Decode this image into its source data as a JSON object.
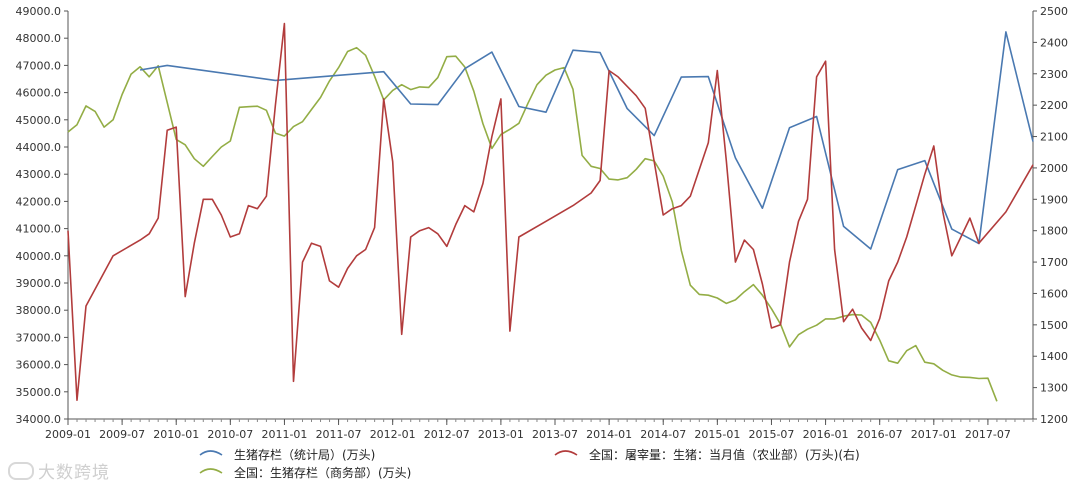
{
  "watermark": "大数跨境",
  "chart_data": {
    "type": "line",
    "x_ticks": [
      "2009-01",
      "2009-07",
      "2010-01",
      "2010-07",
      "2011-01",
      "2011-07",
      "2012-01",
      "2012-07",
      "2013-01",
      "2013-07",
      "2014-01",
      "2014-07",
      "2015-01",
      "2015-07",
      "2016-01",
      "2016-07",
      "2017-01",
      "2017-07"
    ],
    "y_left": {
      "lim": [
        34000,
        49000
      ],
      "step": 1000,
      "ticks": [
        "34000.0",
        "35000.0",
        "36000.0",
        "37000.0",
        "38000.0",
        "39000.0",
        "40000.0",
        "41000.0",
        "42000.0",
        "43000.0",
        "44000.0",
        "45000.0",
        "46000.0",
        "47000.0",
        "48000.0",
        "49000.0"
      ]
    },
    "y_right": {
      "lim": [
        1200,
        2500
      ],
      "step": 100,
      "ticks": [
        "1200",
        "1300",
        "1400",
        "1500",
        "1600",
        "1700",
        "1800",
        "1900",
        "2000",
        "2100",
        "2200",
        "2300",
        "2400",
        "2500"
      ]
    },
    "x_lim": [
      "2009-01",
      "2017-12"
    ],
    "grid": false,
    "legend_position": "bottom",
    "series": [
      {
        "name": "生猪存栏（统计局）(万头)",
        "axis": "left",
        "color": "#4a79b1",
        "points": [
          [
            "2009-09",
            46830
          ],
          [
            "2009-12",
            47000
          ],
          [
            "2010-12",
            46450
          ],
          [
            "2011-12",
            46770
          ],
          [
            "2012-03",
            45580
          ],
          [
            "2012-06",
            45560
          ],
          [
            "2012-09",
            46880
          ],
          [
            "2012-12",
            47490
          ],
          [
            "2013-03",
            45490
          ],
          [
            "2013-06",
            45280
          ],
          [
            "2013-09",
            47560
          ],
          [
            "2013-12",
            47470
          ],
          [
            "2014-03",
            45410
          ],
          [
            "2014-06",
            44420
          ],
          [
            "2014-09",
            46570
          ],
          [
            "2014-12",
            46590
          ],
          [
            "2015-03",
            43600
          ],
          [
            "2015-06",
            41750
          ],
          [
            "2015-09",
            44710
          ],
          [
            "2015-12",
            45120
          ],
          [
            "2016-03",
            41080
          ],
          [
            "2016-06",
            40250
          ],
          [
            "2016-09",
            43170
          ],
          [
            "2016-12",
            43500
          ],
          [
            "2017-03",
            40980
          ],
          [
            "2017-06",
            40450
          ],
          [
            "2017-09",
            48230
          ],
          [
            "2017-12",
            44200
          ]
        ]
      },
      {
        "name": "全国：屠宰量：生猪：当月值（农业部）(万头)(右)",
        "axis": "right",
        "color": "#b23c3c",
        "points": [
          [
            "2009-01",
            1800
          ],
          [
            "2009-02",
            1260
          ],
          [
            "2009-03",
            1560
          ],
          [
            "2009-06",
            1720
          ],
          [
            "2009-09",
            1770
          ],
          [
            "2009-10",
            1790
          ],
          [
            "2009-11",
            1840
          ],
          [
            "2009-12",
            2120
          ],
          [
            "2010-01",
            2130
          ],
          [
            "2010-02",
            1590
          ],
          [
            "2010-03",
            1760
          ],
          [
            "2010-04",
            1900
          ],
          [
            "2010-05",
            1900
          ],
          [
            "2010-06",
            1850
          ],
          [
            "2010-07",
            1780
          ],
          [
            "2010-08",
            1790
          ],
          [
            "2010-09",
            1880
          ],
          [
            "2010-10",
            1870
          ],
          [
            "2010-11",
            1910
          ],
          [
            "2010-12",
            2200
          ],
          [
            "2011-01",
            2460
          ],
          [
            "2011-02",
            1320
          ],
          [
            "2011-03",
            1700
          ],
          [
            "2011-04",
            1760
          ],
          [
            "2011-05",
            1750
          ],
          [
            "2011-06",
            1640
          ],
          [
            "2011-07",
            1620
          ],
          [
            "2011-08",
            1680
          ],
          [
            "2011-09",
            1720
          ],
          [
            "2011-10",
            1740
          ],
          [
            "2011-11",
            1810
          ],
          [
            "2011-12",
            2220
          ],
          [
            "2012-01",
            2020
          ],
          [
            "2012-02",
            1470
          ],
          [
            "2012-03",
            1780
          ],
          [
            "2012-04",
            1800
          ],
          [
            "2012-05",
            1810
          ],
          [
            "2012-06",
            1790
          ],
          [
            "2012-07",
            1750
          ],
          [
            "2012-08",
            1820
          ],
          [
            "2012-09",
            1880
          ],
          [
            "2012-10",
            1860
          ],
          [
            "2012-11",
            1950
          ],
          [
            "2012-12",
            2100
          ],
          [
            "2013-01",
            2220
          ],
          [
            "2013-02",
            1480
          ],
          [
            "2013-03",
            1780
          ],
          [
            "2013-06",
            1830
          ],
          [
            "2013-09",
            1880
          ],
          [
            "2013-11",
            1920
          ],
          [
            "2013-12",
            1960
          ],
          [
            "2014-01",
            2310
          ],
          [
            "2014-02",
            2290
          ],
          [
            "2014-04",
            2230
          ],
          [
            "2014-05",
            2190
          ],
          [
            "2014-06",
            2020
          ],
          [
            "2014-07",
            1850
          ],
          [
            "2014-08",
            1870
          ],
          [
            "2014-09",
            1880
          ],
          [
            "2014-10",
            1910
          ],
          [
            "2014-12",
            2080
          ],
          [
            "2015-01",
            2310
          ],
          [
            "2015-02",
            2020
          ],
          [
            "2015-03",
            1700
          ],
          [
            "2015-04",
            1770
          ],
          [
            "2015-05",
            1740
          ],
          [
            "2015-06",
            1630
          ],
          [
            "2015-07",
            1490
          ],
          [
            "2015-08",
            1500
          ],
          [
            "2015-09",
            1700
          ],
          [
            "2015-10",
            1830
          ],
          [
            "2015-11",
            1900
          ],
          [
            "2015-12",
            2290
          ],
          [
            "2016-01",
            2340
          ],
          [
            "2016-02",
            1740
          ],
          [
            "2016-03",
            1510
          ],
          [
            "2016-04",
            1550
          ],
          [
            "2016-05",
            1490
          ],
          [
            "2016-06",
            1450
          ],
          [
            "2016-07",
            1520
          ],
          [
            "2016-08",
            1640
          ],
          [
            "2016-09",
            1700
          ],
          [
            "2016-10",
            1780
          ],
          [
            "2016-11",
            1880
          ],
          [
            "2016-12",
            1980
          ],
          [
            "2017-01",
            2070
          ],
          [
            "2017-02",
            1860
          ],
          [
            "2017-03",
            1720
          ],
          [
            "2017-04",
            1780
          ],
          [
            "2017-05",
            1840
          ],
          [
            "2017-06",
            1760
          ],
          [
            "2017-09",
            1860
          ],
          [
            "2017-12",
            2010
          ]
        ]
      },
      {
        "name": "全国：生猪存栏（商务部）(万头)",
        "axis": "left",
        "color": "#93ad45",
        "points": [
          [
            "2009-01",
            44550
          ],
          [
            "2009-02",
            44820
          ],
          [
            "2009-03",
            45510
          ],
          [
            "2009-04",
            45310
          ],
          [
            "2009-05",
            44730
          ],
          [
            "2009-06",
            45000
          ],
          [
            "2009-07",
            45930
          ],
          [
            "2009-08",
            46680
          ],
          [
            "2009-09",
            46950
          ],
          [
            "2009-10",
            46580
          ],
          [
            "2009-11",
            46990
          ],
          [
            "2009-12",
            45640
          ],
          [
            "2010-01",
            44280
          ],
          [
            "2010-02",
            44080
          ],
          [
            "2010-03",
            43570
          ],
          [
            "2010-04",
            43290
          ],
          [
            "2010-05",
            43650
          ],
          [
            "2010-06",
            44000
          ],
          [
            "2010-07",
            44220
          ],
          [
            "2010-08",
            45460
          ],
          [
            "2010-09",
            45480
          ],
          [
            "2010-10",
            45500
          ],
          [
            "2010-11",
            45350
          ],
          [
            "2010-12",
            44510
          ],
          [
            "2011-01",
            44400
          ],
          [
            "2011-02",
            44750
          ],
          [
            "2011-03",
            44930
          ],
          [
            "2011-04",
            45380
          ],
          [
            "2011-05",
            45820
          ],
          [
            "2011-06",
            46430
          ],
          [
            "2011-07",
            46920
          ],
          [
            "2011-08",
            47510
          ],
          [
            "2011-09",
            47650
          ],
          [
            "2011-10",
            47370
          ],
          [
            "2011-11",
            46600
          ],
          [
            "2011-12",
            45730
          ],
          [
            "2012-01",
            46080
          ],
          [
            "2012-02",
            46290
          ],
          [
            "2012-03",
            46110
          ],
          [
            "2012-04",
            46210
          ],
          [
            "2012-05",
            46190
          ],
          [
            "2012-06",
            46550
          ],
          [
            "2012-07",
            47320
          ],
          [
            "2012-08",
            47340
          ],
          [
            "2012-09",
            46940
          ],
          [
            "2012-10",
            46050
          ],
          [
            "2012-11",
            44860
          ],
          [
            "2012-12",
            43950
          ],
          [
            "2013-01",
            44460
          ],
          [
            "2013-02",
            44650
          ],
          [
            "2013-03",
            44870
          ],
          [
            "2013-04",
            45610
          ],
          [
            "2013-05",
            46290
          ],
          [
            "2013-06",
            46640
          ],
          [
            "2013-07",
            46830
          ],
          [
            "2013-08",
            46920
          ],
          [
            "2013-09",
            46120
          ],
          [
            "2013-10",
            43690
          ],
          [
            "2013-11",
            43290
          ],
          [
            "2013-12",
            43210
          ],
          [
            "2014-01",
            42820
          ],
          [
            "2014-02",
            42790
          ],
          [
            "2014-03",
            42870
          ],
          [
            "2014-04",
            43180
          ],
          [
            "2014-05",
            43570
          ],
          [
            "2014-06",
            43490
          ],
          [
            "2014-07",
            42930
          ],
          [
            "2014-08",
            41980
          ],
          [
            "2014-09",
            40200
          ],
          [
            "2014-10",
            38920
          ],
          [
            "2014-11",
            38580
          ],
          [
            "2014-12",
            38550
          ],
          [
            "2015-01",
            38450
          ],
          [
            "2015-02",
            38250
          ],
          [
            "2015-03",
            38380
          ],
          [
            "2015-04",
            38680
          ],
          [
            "2015-05",
            38940
          ],
          [
            "2015-06",
            38550
          ],
          [
            "2015-07",
            38050
          ],
          [
            "2015-08",
            37490
          ],
          [
            "2015-09",
            36650
          ],
          [
            "2015-10",
            37100
          ],
          [
            "2015-11",
            37300
          ],
          [
            "2015-12",
            37450
          ],
          [
            "2016-01",
            37680
          ],
          [
            "2016-02",
            37680
          ],
          [
            "2016-03",
            37780
          ],
          [
            "2016-04",
            37840
          ],
          [
            "2016-05",
            37820
          ],
          [
            "2016-06",
            37550
          ],
          [
            "2016-07",
            36900
          ],
          [
            "2016-08",
            36140
          ],
          [
            "2016-09",
            36050
          ],
          [
            "2016-10",
            36510
          ],
          [
            "2016-11",
            36700
          ],
          [
            "2016-12",
            36090
          ],
          [
            "2017-01",
            36030
          ],
          [
            "2017-02",
            35790
          ],
          [
            "2017-03",
            35620
          ],
          [
            "2017-04",
            35540
          ],
          [
            "2017-05",
            35530
          ],
          [
            "2017-06",
            35490
          ],
          [
            "2017-07",
            35500
          ],
          [
            "2017-08",
            34650
          ]
        ]
      }
    ]
  }
}
